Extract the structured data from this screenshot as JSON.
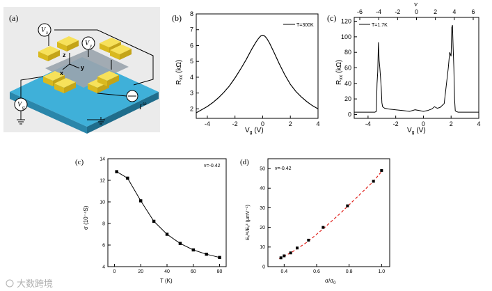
{
  "panel_labels": {
    "a": "(a)",
    "b": "(b)",
    "c_top": "(c)",
    "c_bottom": "(c)",
    "d": "(d)"
  },
  "device": {
    "vx_label": "V",
    "vx_sub": "x",
    "vy_label": "V",
    "vy_sub": "y",
    "vg_label": "V",
    "vg_sub": "g",
    "current_label": "I",
    "current_sup": "ω",
    "axis_z": "z",
    "axis_x": "x",
    "axis_y": "y",
    "colors": {
      "substrate": "#3fb0d9",
      "contact": "#f2d535",
      "channel": "#9aa4ad"
    }
  },
  "watermark": {
    "text": "大数跨境"
  },
  "chart_data": [
    {
      "id": "b",
      "type": "line",
      "title": "",
      "legend": "T=300K",
      "legend_placement": "top-right",
      "xlabel": "V",
      "xlabel_sub": "g",
      "xlabel_unit": " (V)",
      "ylabel": "R",
      "ylabel_sub": "xx",
      "ylabel_unit": " (kΩ)",
      "xlim": [
        -4.8,
        4
      ],
      "ylim": [
        1.4,
        8
      ],
      "xticks": [
        -4,
        -2,
        0,
        2,
        4
      ],
      "yticks": [
        2,
        3,
        4,
        5,
        6,
        7,
        8
      ],
      "x": [
        -4.8,
        -4.4,
        -4.0,
        -3.6,
        -3.2,
        -2.8,
        -2.4,
        -2.0,
        -1.6,
        -1.2,
        -0.8,
        -0.5,
        -0.3,
        -0.15,
        0.0,
        0.15,
        0.3,
        0.5,
        0.8,
        1.2,
        1.6,
        2.0,
        2.4,
        2.8,
        3.2,
        3.6,
        4.0
      ],
      "y": [
        1.75,
        1.95,
        2.15,
        2.4,
        2.7,
        3.05,
        3.45,
        3.95,
        4.5,
        5.1,
        5.75,
        6.2,
        6.45,
        6.6,
        6.65,
        6.6,
        6.45,
        6.15,
        5.6,
        4.85,
        4.15,
        3.55,
        3.1,
        2.75,
        2.45,
        2.2,
        2.0
      ]
    },
    {
      "id": "c_top",
      "type": "line",
      "legend": "T=1.7K",
      "legend_placement": "top-left",
      "xlabel": "V",
      "xlabel_sub": "g",
      "xlabel_unit": " (V)",
      "ylabel": "R",
      "ylabel_sub": "xx",
      "ylabel_unit": " (kΩ)",
      "top_axis_label": "ν",
      "xlim": [
        -5,
        4
      ],
      "ylim": [
        -5,
        125
      ],
      "xticks": [
        -4,
        -2,
        0,
        2,
        4
      ],
      "yticks": [
        0,
        20,
        40,
        60,
        80,
        100,
        120
      ],
      "top_ticks": [
        "-6",
        "-4",
        "-2",
        "0",
        "2",
        "4",
        "6"
      ],
      "x": [
        -5.0,
        -4.0,
        -3.5,
        -3.4,
        -3.35,
        -3.3,
        -3.25,
        -3.2,
        -3.15,
        -3.1,
        -3.05,
        -3.0,
        -2.95,
        -2.8,
        -2.5,
        -2.0,
        -1.5,
        -1.0,
        -0.6,
        -0.3,
        0.0,
        0.3,
        0.6,
        0.8,
        1.0,
        1.2,
        1.5,
        1.8,
        1.9,
        2.0,
        2.05,
        2.1,
        2.15,
        2.2,
        2.25,
        2.3,
        2.35,
        2.5,
        3.0,
        4.0
      ],
      "y": [
        3,
        3,
        3,
        4,
        40,
        55,
        93,
        70,
        60,
        48,
        35,
        15,
        10,
        8,
        7,
        6,
        5,
        4,
        6,
        5,
        4,
        5,
        7,
        10,
        8,
        9,
        14,
        60,
        80,
        75,
        112,
        115,
        85,
        60,
        20,
        5,
        4,
        3,
        3,
        3
      ]
    },
    {
      "id": "c_bottom",
      "type": "line",
      "annotation": "ν=-0.42",
      "xlabel": "T (K)",
      "ylabel": "σ (10⁻⁴S)",
      "xlim": [
        -5,
        85
      ],
      "ylim": [
        4,
        14
      ],
      "xticks": [
        0,
        20,
        40,
        60,
        80
      ],
      "yticks": [
        4,
        6,
        8,
        10,
        12,
        14
      ],
      "x": [
        1.7,
        10,
        20,
        30,
        40,
        50,
        60,
        70,
        80
      ],
      "y": [
        12.8,
        12.2,
        10.1,
        8.2,
        7.0,
        6.15,
        5.55,
        5.15,
        4.85
      ]
    },
    {
      "id": "d",
      "type": "scatter",
      "annotation": "ν=-0.42",
      "xlabel": "σ/σ",
      "xlabel_sub": "0",
      "ylabel": "Eₓ²ᵠ/Eₓ² (μmV⁻¹)",
      "xlim": [
        0.3,
        1.05
      ],
      "ylim": [
        0,
        55
      ],
      "xticks": [
        0.4,
        0.6,
        0.8,
        1.0
      ],
      "yticks": [
        0,
        10,
        20,
        30,
        40,
        50
      ],
      "x": [
        0.38,
        0.4,
        0.44,
        0.48,
        0.55,
        0.64,
        0.79,
        0.95,
        1.0
      ],
      "y": [
        4.5,
        5.5,
        7.0,
        9.5,
        13.5,
        20.0,
        31.0,
        43.5,
        49.0
      ],
      "fit": {
        "x": [
          0.37,
          0.45,
          0.55,
          0.65,
          0.75,
          0.85,
          0.95,
          1.0
        ],
        "y": [
          4.0,
          7.5,
          13.0,
          20.0,
          27.5,
          35.5,
          43.5,
          48.5
        ]
      }
    }
  ]
}
